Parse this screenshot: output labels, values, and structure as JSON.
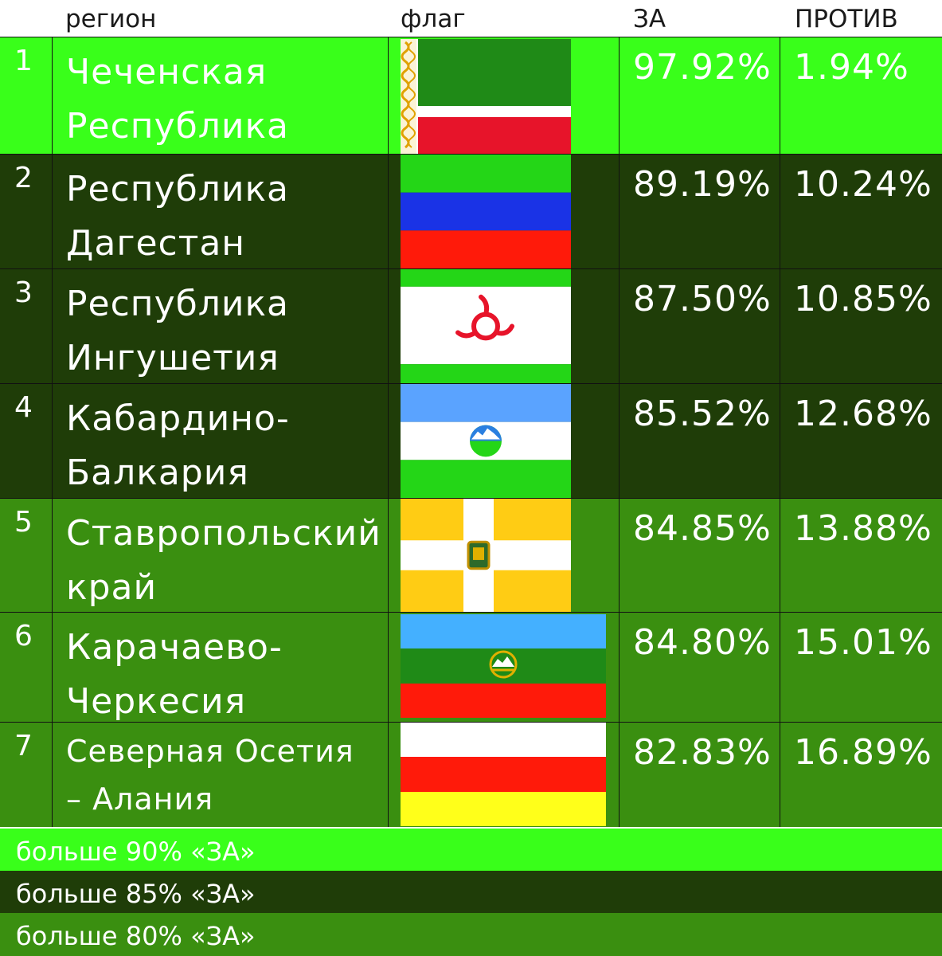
{
  "chart_data": {
    "type": "table",
    "columns": [
      "",
      "регион",
      "флаг",
      "ЗА",
      "ПРОТИВ"
    ],
    "rows": [
      {
        "rank": "1",
        "region": "Чеченская Республика",
        "za": "97.92%",
        "protiv": "1.94%",
        "za_value": 97.92,
        "protiv_value": 1.94
      },
      {
        "rank": "2",
        "region": "Республика Дагестан",
        "za": "89.19%",
        "protiv": "10.24%",
        "za_value": 89.19,
        "protiv_value": 10.24
      },
      {
        "rank": "3",
        "region": "Республика Ингушетия",
        "za": "87.50%",
        "protiv": "10.85%",
        "za_value": 87.5,
        "protiv_value": 10.85
      },
      {
        "rank": "4",
        "region": "Кабардино-Балкария",
        "za": "85.52%",
        "protiv": "12.68%",
        "za_value": 85.52,
        "protiv_value": 12.68
      },
      {
        "rank": "5",
        "region": "Ставропольский край",
        "za": "84.85%",
        "protiv": "13.88%",
        "za_value": 84.85,
        "protiv_value": 13.88
      },
      {
        "rank": "6",
        "region": "Карачаево-Черкесия",
        "za": "84.80%",
        "protiv": "15.01%",
        "za_value": 84.8,
        "protiv_value": 15.01
      },
      {
        "rank": "7",
        "region": "Северная Осетия – Алания",
        "za": "82.83%",
        "protiv": "16.89%",
        "za_value": 82.83,
        "protiv_value": 16.89
      }
    ],
    "legend": [
      {
        "label": "больше 90% «ЗА»",
        "color": "#39ff1a"
      },
      {
        "label": "больше 85% «ЗА»",
        "color": "#1f3d08"
      },
      {
        "label": "больше 80% «ЗА»",
        "color": "#3a8f10"
      }
    ]
  },
  "header": {
    "region": "регион",
    "flag": "флаг",
    "za": "ЗА",
    "protiv": "ПРОТИВ"
  },
  "rows": [
    {
      "rank": "1",
      "region_l1": "Чеченская",
      "region_l2": "Республика",
      "za": "97.92%",
      "protiv": "1.94%",
      "bg": "#39ff1a",
      "flag_icon": "chechnya-flag-icon"
    },
    {
      "rank": "2",
      "region_l1": "Республика",
      "region_l2": "Дагестан",
      "za": "89.19%",
      "protiv": "10.24%",
      "bg": "#1f3d08",
      "flag_icon": "dagestan-flag-icon"
    },
    {
      "rank": "3",
      "region_l1": "Республика",
      "region_l2": "Ингушетия",
      "za": "87.50%",
      "protiv": "10.85%",
      "bg": "#1f3d08",
      "flag_icon": "ingushetia-flag-icon"
    },
    {
      "rank": "4",
      "region_l1": "Кабардино-",
      "region_l2": "Балкария",
      "za": "85.52%",
      "protiv": "12.68%",
      "bg": "#1f3d08",
      "flag_icon": "kabardino-balkaria-flag-icon"
    },
    {
      "rank": "5",
      "region_l1": "Ставропольский",
      "region_l2": "край",
      "za": "84.85%",
      "protiv": "13.88%",
      "bg": "#3a8f10",
      "flag_icon": "stavropol-flag-icon"
    },
    {
      "rank": "6",
      "region_l1": "Карачаево-",
      "region_l2": "Черкесия",
      "za": "84.80%",
      "protiv": "15.01%",
      "bg": "#3a8f10",
      "flag_icon": "karachay-cherkessia-flag-icon"
    },
    {
      "rank": "7",
      "region_l1": "Северная Осетия",
      "region_l2": "– Алания",
      "za": "82.83%",
      "protiv": "16.89%",
      "bg": "#3a8f10",
      "flag_icon": "north-ossetia-flag-icon"
    }
  ],
  "legend": [
    {
      "label": "больше 90% «ЗА»",
      "bg": "#39ff1a"
    },
    {
      "label": "больше 85% «ЗА»",
      "bg": "#1f3d08"
    },
    {
      "label": "больше 80% «ЗА»",
      "bg": "#3a8f10"
    }
  ]
}
